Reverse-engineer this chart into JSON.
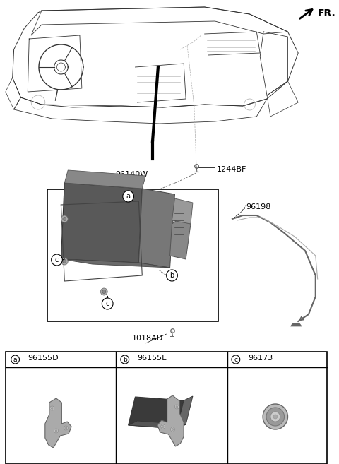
{
  "bg_color": "#ffffff",
  "text_color": "#000000",
  "line_color": "#333333",
  "gray_color": "#888888",
  "dark_gray": "#3a3a3a",
  "mid_gray": "#666666",
  "light_gray": "#aaaaaa",
  "parts": {
    "main_unit": "96140W",
    "bolt": "1244BF",
    "wire": "96198",
    "bracket_bolt": "1018AD",
    "sub_a": "96155D",
    "sub_b": "96155E",
    "sub_c": "96173"
  },
  "fig_width": 4.8,
  "fig_height": 6.57,
  "dpi": 100
}
